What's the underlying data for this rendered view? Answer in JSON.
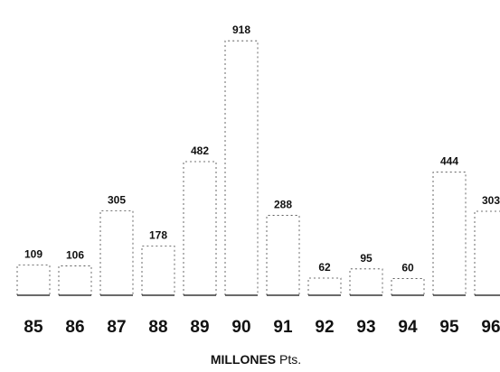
{
  "chart_data": {
    "type": "bar",
    "categories": [
      "85",
      "86",
      "87",
      "88",
      "89",
      "90",
      "91",
      "92",
      "93",
      "94",
      "95",
      "96"
    ],
    "values": [
      109,
      106,
      305,
      178,
      482,
      918,
      288,
      62,
      95,
      60,
      444,
      303
    ],
    "value_labels": [
      "109",
      "106",
      "305",
      "178",
      "482",
      "918",
      "288",
      "62",
      "95",
      "60",
      "444",
      "303"
    ],
    "xlabel_main": "MILLONES",
    "xlabel_suffix": " Pts.",
    "ylim": [
      0,
      1000
    ],
    "grid": false,
    "legend": "none",
    "colors": {
      "ink": "#111111",
      "faint": "#444444"
    }
  }
}
